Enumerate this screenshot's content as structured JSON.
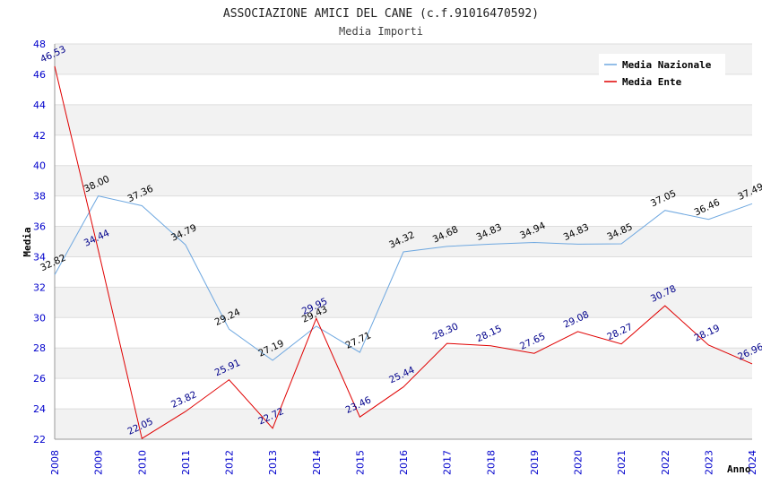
{
  "chart_data": {
    "type": "line",
    "title": "ASSOCIAZIONE AMICI DEL CANE (c.f.91016470592)",
    "subtitle": "Media Importi",
    "xlabel": "Anno",
    "ylabel": "Media",
    "x": [
      "2008",
      "2009",
      "2010",
      "2011",
      "2012",
      "2013",
      "2014",
      "2015",
      "2016",
      "2017",
      "2018",
      "2019",
      "2020",
      "2021",
      "2022",
      "2023",
      "2024"
    ],
    "ylim": [
      22,
      48
    ],
    "yticks": [
      "22",
      "24",
      "26",
      "28",
      "30",
      "32",
      "34",
      "36",
      "38",
      "40",
      "42",
      "44",
      "46",
      "48"
    ],
    "grid": true,
    "legend_position": "top-right",
    "series": [
      {
        "name": "Media Nazionale",
        "color": "#6fa8e0",
        "label_color": "#000000",
        "values": [
          32.82,
          38.0,
          37.36,
          34.79,
          29.24,
          27.19,
          29.43,
          27.71,
          34.32,
          34.68,
          34.83,
          34.94,
          34.83,
          34.85,
          37.05,
          36.46,
          37.49
        ],
        "labels": [
          "32.82",
          "38.00",
          "37.36",
          "34.79",
          "29.24",
          "27.19",
          "29.43",
          "27.71",
          "34.32",
          "34.68",
          "34.83",
          "34.94",
          "34.83",
          "34.85",
          "37.05",
          "36.46",
          "37.49"
        ]
      },
      {
        "name": "Media Ente",
        "color": "#e00000",
        "label_color": "#00008b",
        "values": [
          46.53,
          34.44,
          22.05,
          23.82,
          25.91,
          22.72,
          29.95,
          23.46,
          25.44,
          28.3,
          28.15,
          27.65,
          29.08,
          28.27,
          30.78,
          28.19,
          26.96
        ],
        "labels": [
          "46.53",
          "34.44",
          "22.05",
          "23.82",
          "25.91",
          "22.72",
          "29.95",
          "23.46",
          "25.44",
          "28.30",
          "28.15",
          "27.65",
          "29.08",
          "28.27",
          "30.78",
          "28.19",
          "26.96"
        ]
      }
    ]
  }
}
